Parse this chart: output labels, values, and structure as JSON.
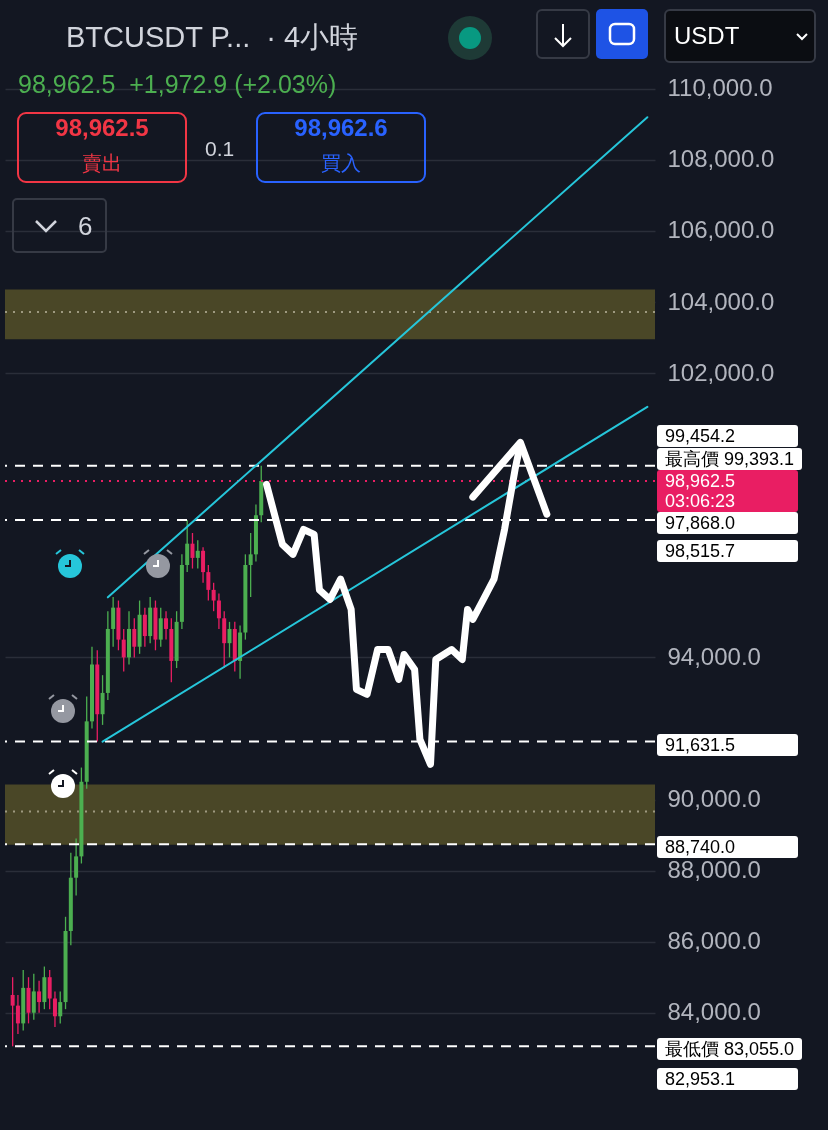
{
  "chart_data": {
    "type": "candlestick",
    "title": "BTCUSDT P...  · 4小時",
    "subtitle": "98,962.5  +1,972.9 (+2.03%)",
    "categories": [
      null,
      null,
      null,
      null,
      null,
      null,
      null,
      null,
      null,
      null,
      null,
      null,
      null,
      null,
      null,
      null,
      null,
      null,
      null,
      null,
      null,
      null,
      null,
      null,
      null,
      null,
      null,
      null,
      null,
      null,
      null,
      null,
      null,
      null,
      null,
      null,
      null,
      null,
      null,
      null,
      null,
      null,
      null,
      null,
      null,
      null,
      null,
      null,
      null,
      null,
      null,
      null,
      null,
      null,
      null,
      null,
      null,
      null,
      null,
      null,
      null,
      null,
      null,
      null,
      null,
      null,
      null,
      null,
      null,
      null,
      null,
      null,
      null,
      null,
      null,
      null,
      null,
      null,
      null,
      null,
      null,
      null,
      null,
      null,
      null,
      null,
      null,
      null,
      null,
      null,
      null,
      null,
      null,
      null,
      null,
      null,
      null,
      null,
      null,
      null,
      null,
      null,
      null,
      null,
      null,
      null,
      null,
      null,
      null,
      null,
      null,
      null,
      null,
      null,
      null,
      null,
      null,
      null,
      null,
      null,
      null
    ],
    "ohlc": [
      [
        84500,
        85000,
        83055,
        84200
      ],
      [
        84200,
        84500,
        83400,
        83700
      ],
      [
        83700,
        85200,
        83500,
        84700
      ],
      [
        84700,
        85000,
        83700,
        84000
      ],
      [
        84000,
        85100,
        83800,
        84600
      ],
      [
        84600,
        84900,
        84000,
        84300
      ],
      [
        84300,
        85300,
        84100,
        85000
      ],
      [
        85000,
        85200,
        84100,
        84400
      ],
      [
        84400,
        84600,
        83600,
        83900
      ],
      [
        83900,
        84600,
        83700,
        84300
      ],
      [
        84300,
        86700,
        84100,
        86300
      ],
      [
        86300,
        88500,
        85900,
        87800
      ],
      [
        87800,
        88900,
        87300,
        88400
      ],
      [
        88400,
        90900,
        88200,
        90500
      ],
      [
        90500,
        92900,
        90300,
        92200
      ],
      [
        92200,
        94300,
        92000,
        93800
      ],
      [
        93800,
        94200,
        91631.5,
        92400
      ],
      [
        92400,
        93500,
        92100,
        93000
      ],
      [
        93000,
        95300,
        92800,
        94800
      ],
      [
        94800,
        95700,
        94300,
        95400
      ],
      [
        95400,
        95600,
        94200,
        94500
      ],
      [
        94500,
        94800,
        93600,
        94000
      ],
      [
        94000,
        95300,
        93800,
        94800
      ],
      [
        94800,
        95100,
        94000,
        94300
      ],
      [
        94300,
        95600,
        94100,
        95200
      ],
      [
        95200,
        95400,
        94300,
        94600
      ],
      [
        94600,
        95700,
        94400,
        95400
      ],
      [
        95400,
        95600,
        94200,
        94500
      ],
      [
        94500,
        95400,
        94300,
        95100
      ],
      [
        95100,
        95300,
        94500,
        94800
      ],
      [
        94800,
        95100,
        93300,
        93900
      ],
      [
        93900,
        95300,
        93700,
        95000
      ],
      [
        95000,
        96900,
        94800,
        96600
      ],
      [
        96600,
        97868,
        96400,
        97200
      ],
      [
        97200,
        97500,
        96500,
        96800
      ],
      [
        96800,
        97300,
        96500,
        97000
      ],
      [
        97000,
        97100,
        96100,
        96400
      ],
      [
        96400,
        96600,
        95600,
        95900
      ],
      [
        95900,
        96100,
        95300,
        95600
      ],
      [
        95600,
        95800,
        94800,
        95100
      ],
      [
        95100,
        95300,
        93700,
        94400
      ],
      [
        94400,
        95000,
        94000,
        94800
      ],
      [
        94800,
        95000,
        93600,
        93900
      ],
      [
        93900,
        94900,
        93400,
        94700
      ],
      [
        94700,
        96900,
        94500,
        96600
      ],
      [
        96600,
        97500,
        95700,
        96900
      ],
      [
        96900,
        98300,
        96700,
        98000
      ],
      [
        98000,
        99393.1,
        97800,
        98962.5
      ],
      null,
      null,
      null,
      null,
      null,
      null,
      null,
      null,
      null,
      null,
      null,
      null,
      null,
      null,
      null,
      null,
      null,
      null,
      null,
      null,
      null,
      null,
      null,
      null,
      null,
      null,
      null,
      null,
      null,
      null,
      null,
      null,
      null,
      null,
      null,
      null,
      null,
      null,
      null,
      null,
      null,
      null,
      null,
      null,
      null,
      null,
      null,
      null,
      null,
      null,
      null,
      null,
      null,
      null,
      null,
      null,
      null,
      null,
      null,
      null,
      null,
      null,
      null,
      null,
      null,
      null,
      null,
      null,
      null,
      null,
      null,
      null,
      null
    ],
    "colors": [
      "#e91e63",
      "#e91e63",
      "#4caf50",
      "#e91e63",
      "#4caf50",
      "#e91e63",
      "#4caf50",
      "#e91e63",
      "#e91e63",
      "#4caf50",
      "#4caf50",
      "#4caf50",
      "#4caf50",
      "#4caf50",
      "#4caf50",
      "#4caf50",
      "#e91e63",
      "#4caf50",
      "#4caf50",
      "#4caf50",
      "#e91e63",
      "#e91e63",
      "#4caf50",
      "#e91e63",
      "#4caf50",
      "#e91e63",
      "#4caf50",
      "#e91e63",
      "#4caf50",
      "#e91e63",
      "#e91e63",
      "#4caf50",
      "#4caf50",
      "#4caf50",
      "#e91e63",
      "#4caf50",
      "#e91e63",
      "#e91e63",
      "#e91e63",
      "#e91e63",
      "#e91e63",
      "#4caf50",
      "#e91e63",
      "#4caf50",
      "#4caf50",
      "#4caf50",
      "#4caf50",
      "#4caf50",
      null,
      null,
      null,
      null,
      null,
      null,
      null,
      null,
      null,
      null,
      null,
      null,
      null,
      null,
      null,
      null,
      null,
      null,
      null,
      null,
      null,
      null,
      null,
      null,
      null,
      null,
      null,
      null,
      null,
      null,
      null,
      null,
      null,
      null,
      null,
      null,
      null,
      null,
      null,
      null,
      null,
      null,
      null,
      null,
      null,
      null,
      null,
      null,
      null,
      null,
      null,
      null,
      null,
      null,
      null,
      null,
      null,
      null,
      null,
      null,
      null,
      null,
      null,
      null,
      null,
      null,
      null,
      null,
      null,
      null,
      null,
      null,
      null
    ],
    "series": [
      {
        "type": "line",
        "color": "#26c6da",
        "values": [
          null,
          null,
          null,
          null,
          null,
          null,
          null,
          null,
          null,
          null,
          null,
          null,
          null,
          null,
          null,
          null,
          null,
          null,
          95690,
          null,
          null,
          null,
          null,
          null,
          null,
          null,
          null,
          null,
          null,
          null,
          null,
          null,
          null,
          null,
          null,
          null,
          null,
          null,
          null,
          null,
          null,
          null,
          null,
          null,
          null,
          null,
          null,
          null,
          null,
          null,
          null,
          null,
          null,
          null,
          null,
          null,
          null,
          null,
          null,
          null,
          null,
          null,
          null,
          null,
          null,
          null,
          null,
          null,
          null,
          null,
          null,
          null,
          null,
          null,
          null,
          null,
          null,
          null,
          null,
          null,
          null,
          null,
          null,
          null,
          null,
          null,
          null,
          null,
          null,
          null,
          null,
          null,
          null,
          null,
          null,
          null,
          null,
          null,
          null,
          null,
          null,
          null,
          null,
          null,
          null,
          null,
          null,
          null,
          null,
          null,
          null,
          null,
          null,
          null,
          null,
          null,
          null,
          null,
          null,
          null,
          109200
        ]
      },
      {
        "type": "line",
        "color": "#26c6da",
        "values": [
          null,
          null,
          null,
          null,
          null,
          null,
          null,
          null,
          null,
          null,
          null,
          null,
          null,
          null,
          null,
          null,
          null,
          91630,
          null,
          null,
          null,
          null,
          null,
          null,
          null,
          null,
          null,
          null,
          null,
          null,
          null,
          null,
          null,
          null,
          null,
          null,
          null,
          null,
          null,
          null,
          null,
          null,
          null,
          null,
          null,
          null,
          null,
          null,
          null,
          null,
          null,
          null,
          null,
          null,
          null,
          null,
          null,
          null,
          null,
          null,
          null,
          null,
          null,
          null,
          null,
          null,
          null,
          null,
          null,
          null,
          null,
          null,
          null,
          null,
          null,
          null,
          null,
          null,
          null,
          null,
          null,
          null,
          null,
          null,
          null,
          null,
          null,
          null,
          null,
          null,
          null,
          null,
          null,
          null,
          null,
          null,
          null,
          null,
          null,
          null,
          null,
          null,
          null,
          null,
          null,
          null,
          null,
          null,
          null,
          null,
          null,
          null,
          null,
          null,
          null,
          null,
          null,
          null,
          null,
          null,
          101050
        ]
      },
      {
        "type": "line",
        "color": "#ffffff",
        "values": [
          null,
          null,
          null,
          null,
          null,
          null,
          null,
          null,
          null,
          null,
          null,
          null,
          null,
          null,
          null,
          null,
          null,
          null,
          null,
          null,
          null,
          null,
          null,
          null,
          null,
          null,
          null,
          null,
          null,
          null,
          null,
          null,
          null,
          null,
          null,
          null,
          null,
          null,
          null,
          null,
          null,
          null,
          null,
          null,
          null,
          null,
          null,
          null,
          98870,
          null,
          null,
          97180,
          null,
          96900,
          null,
          97600,
          null,
          97460,
          95900,
          null,
          95630,
          null,
          96200,
          null,
          95350,
          93100,
          null,
          92960,
          null,
          94220,
          null,
          94220,
          null,
          93380,
          94080,
          null,
          93660,
          91690,
          null,
          90990,
          93940,
          null,
          null,
          94220,
          null,
          93940,
          95350,
          95070,
          null,
          95630,
          null,
          96200,
          null,
          97600,
          null,
          99300,
          100000,
          null,
          null,
          null,
          null,
          null,
          null,
          null,
          null,
          null,
          null,
          null,
          null,
          null,
          null,
          null,
          null,
          null,
          null,
          null,
          null,
          null,
          null,
          null,
          null
        ]
      },
      {
        "type": "line",
        "color": "#ffffff",
        "values": [
          null,
          null,
          null,
          null,
          null,
          null,
          null,
          null,
          null,
          null,
          null,
          null,
          null,
          null,
          null,
          null,
          null,
          null,
          null,
          null,
          null,
          null,
          null,
          null,
          null,
          null,
          null,
          null,
          null,
          null,
          null,
          null,
          null,
          null,
          null,
          null,
          null,
          null,
          null,
          null,
          null,
          null,
          null,
          null,
          null,
          null,
          null,
          null,
          null,
          null,
          null,
          null,
          null,
          null,
          null,
          null,
          null,
          null,
          null,
          null,
          null,
          null,
          null,
          null,
          null,
          null,
          null,
          null,
          null,
          null,
          null,
          null,
          null,
          null,
          null,
          null,
          null,
          null,
          null,
          null,
          null,
          null,
          null,
          null,
          null,
          null,
          null,
          98510,
          null,
          null,
          null,
          null,
          null,
          null,
          null,
          null,
          100050,
          null,
          null,
          null,
          null,
          98030,
          null,
          null,
          null,
          null,
          null,
          null,
          null,
          null,
          null,
          null,
          null,
          null,
          null,
          null,
          null,
          null,
          null,
          null,
          null
        ]
      }
    ],
    "ylim": [
      80700,
      112500
    ],
    "yticks": [
      {
        "value": 84000,
        "label": "84,000.0"
      },
      {
        "value": 86000,
        "label": "86,000.0"
      },
      {
        "value": 88000,
        "label": "88,000.0"
      },
      {
        "value": 90000,
        "label": "90,000.0"
      },
      {
        "value": 94000,
        "label": "94,000.0"
      },
      {
        "value": 102000,
        "label": "102,000.0"
      },
      {
        "value": 104000,
        "label": "104,000.0"
      },
      {
        "value": 106000,
        "label": "106,000.0"
      },
      {
        "value": 108000,
        "label": "108,000.0"
      },
      {
        "value": 110000,
        "label": "110,000.0"
      }
    ],
    "grid": "y",
    "tick_labels": "y",
    "bands": [
      {
        "axis": "y",
        "from": 102950,
        "to": 104350,
        "color": "#4a4727"
      },
      {
        "axis": "y",
        "from": 88730,
        "to": 90420,
        "color": "#4a4727"
      }
    ],
    "ref_lines": [
      {
        "axis": "y",
        "value": 103720,
        "line_style": "dotted",
        "color": "#9e9a80"
      },
      {
        "axis": "y",
        "value": 89660,
        "line_style": "dotted",
        "color": "#9e9a80"
      },
      {
        "axis": "y",
        "value": 99393.1,
        "label": "最高價 99,393.1",
        "line_style": "dashed"
      },
      {
        "axis": "y",
        "value": 98962.5,
        "label": "98,962.5\n03:06:23",
        "line_style": "dotted",
        "color": "#e91e63"
      },
      {
        "axis": "y",
        "value": 97868,
        "label": "97,868.0",
        "line_style": "dashed"
      },
      {
        "axis": "y",
        "value": 91631.5,
        "label": "91,631.5",
        "line_style": "dashed"
      },
      {
        "axis": "y",
        "value": 88740,
        "label": "88,740.0",
        "line_style": "dashed"
      },
      {
        "axis": "y",
        "value": 83055,
        "label": "最低價 83,055.0",
        "line_style": "dashed"
      }
    ],
    "annotations": [
      "98,962.5",
      "賣出",
      "0.1",
      "98,962.6",
      "買入",
      "6",
      "USDT",
      "99,454.2",
      "98,515.7",
      "82,953.1"
    ]
  }
}
